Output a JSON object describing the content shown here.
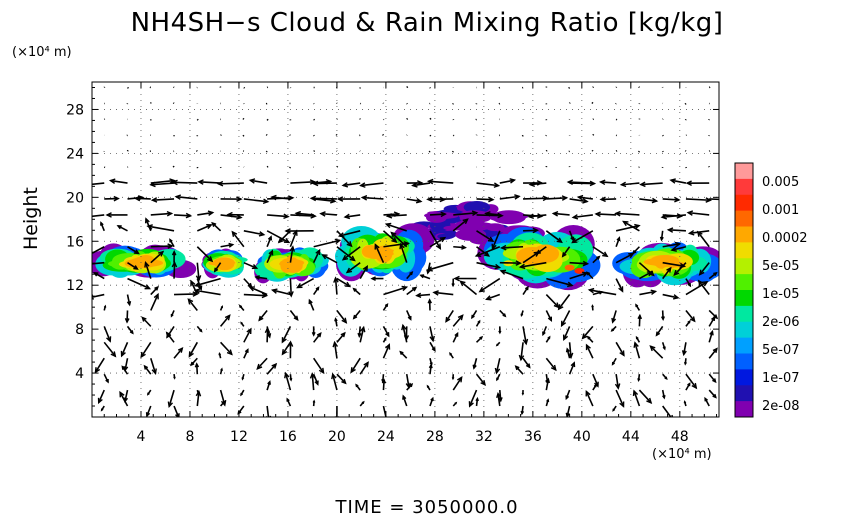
{
  "chart_data": {
    "type": "heatmap",
    "title": "NH4SH−s Cloud & Rain Mixing Ratio [kg/kg]",
    "ylabel": "Height",
    "xunit": "(×10⁴ m)",
    "yunit": "(×10⁴ m)",
    "xlim": [
      0,
      51.2
    ],
    "ylim": [
      0,
      30.5
    ],
    "x_ticks": [
      4,
      8,
      12,
      16,
      20,
      24,
      28,
      32,
      36,
      40,
      44,
      48
    ],
    "y_ticks": [
      4,
      8,
      12,
      16,
      20,
      24,
      28
    ],
    "grid": true,
    "overlay": "velocity vectors",
    "colorbar": {
      "labels": [
        "0.005",
        "0.001",
        "0.0002",
        "5e-05",
        "1e-05",
        "2e-06",
        "5e-07",
        "1e-07",
        "2e-08"
      ],
      "colors": [
        "#ff9a9a",
        "#ff3a3a",
        "#ff2a00",
        "#ff6800",
        "#ffa800",
        "#f0dc00",
        "#b4f000",
        "#50f000",
        "#00d800",
        "#00e8a0",
        "#00d0d8",
        "#00a0ff",
        "#0060ff",
        "#0018e0",
        "#2010b0",
        "#8000b0"
      ]
    },
    "clouds": [
      {
        "x": 0.0,
        "x1": 8.0,
        "y0": 13.0,
        "y1": 15.2
      },
      {
        "x": 9.5,
        "x1": 12.0,
        "y0": 13.2,
        "y1": 14.8
      },
      {
        "x": 13.5,
        "x1": 19.0,
        "y0": 12.6,
        "y1": 15.2
      },
      {
        "x": 19.5,
        "x1": 27.0,
        "y0": 12.8,
        "y1": 17.2
      },
      {
        "x": 31.5,
        "x1": 41.5,
        "y0": 12.2,
        "y1": 17.0
      },
      {
        "x": 42.5,
        "x1": 51.2,
        "y0": 12.4,
        "y1": 15.6
      }
    ],
    "upper_layer": {
      "x": 26.0,
      "x1": 36.0,
      "y0": 16.0,
      "y1": 19.2
    }
  },
  "time_label": "TIME  =  3050000.0"
}
